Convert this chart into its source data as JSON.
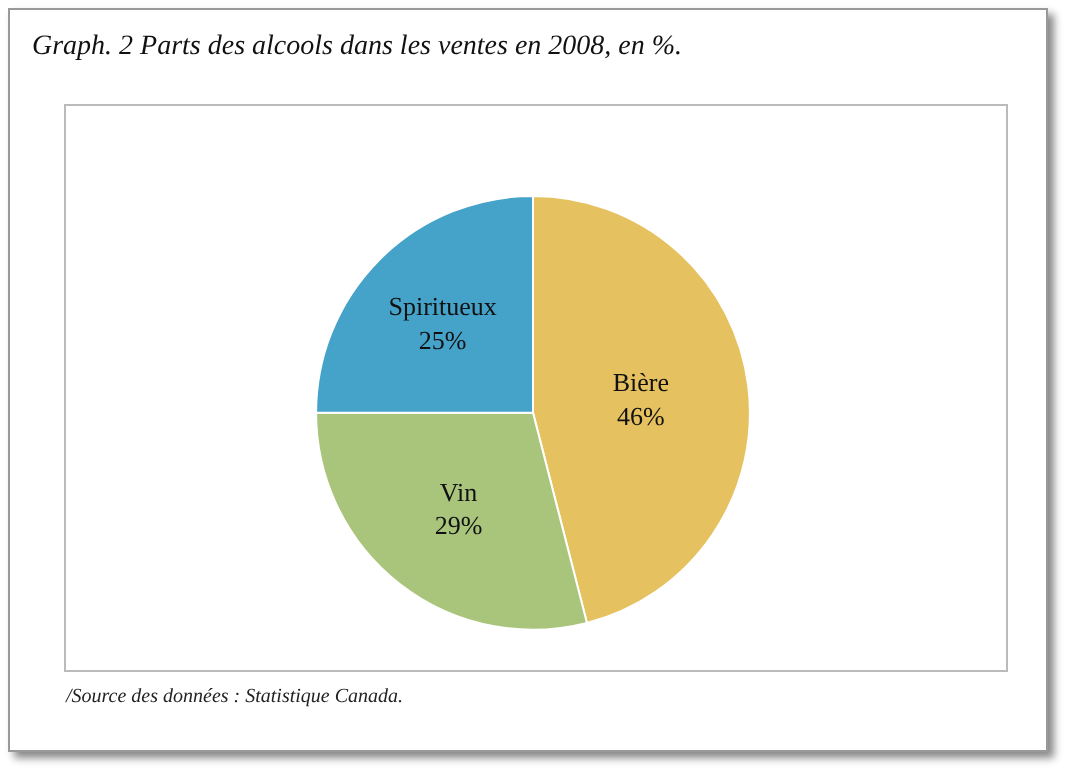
{
  "chart_data": {
    "type": "pie",
    "title": "Graph. 2 Parts des alcools dans les ventes en 2008, en %.",
    "categories": [
      "Bière",
      "Vin",
      "Spiritueux"
    ],
    "values": [
      46,
      29,
      25
    ],
    "value_labels": [
      "46%",
      "29%",
      "25%"
    ],
    "colors": [
      "#e6c160",
      "#a9c57c",
      "#45a3c9"
    ],
    "annotations": [
      "/Source des données : Statistique Canada."
    ],
    "legend": false
  }
}
